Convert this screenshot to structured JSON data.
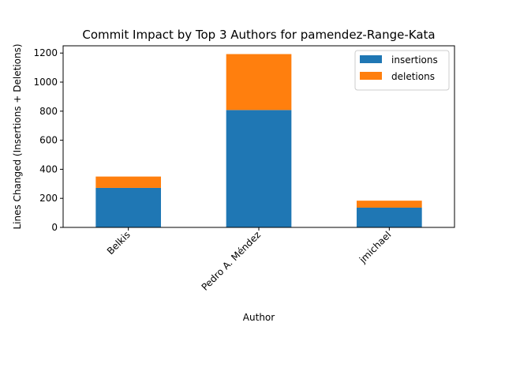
{
  "chart_data": {
    "type": "bar",
    "stacked": true,
    "title": "Commit Impact by Top 3 Authors for pamendez-Range-Kata",
    "xlabel": "Author",
    "ylabel": "Lines Changed (Insertions + Deletions)",
    "categories": [
      "Belkis",
      "Pedro A. Méndez",
      "jmichael"
    ],
    "series": [
      {
        "name": "insertions",
        "color": "#1f77b4",
        "values": [
          272,
          808,
          136
        ]
      },
      {
        "name": "deletions",
        "color": "#ff7f0e",
        "values": [
          78,
          385,
          48
        ]
      }
    ],
    "ylim": [
      0,
      1250
    ],
    "yticks": [
      0,
      200,
      400,
      600,
      800,
      1000,
      1200
    ],
    "grid": false,
    "legend_position": "top-right"
  }
}
